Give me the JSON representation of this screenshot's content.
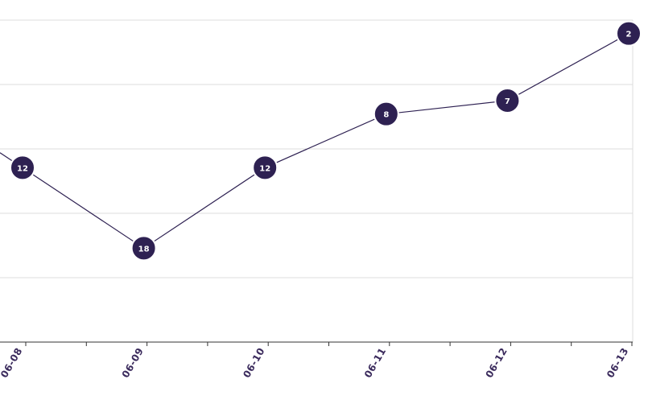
{
  "chart_data": {
    "type": "line",
    "x": [
      "06-08",
      "06-09",
      "06-10",
      "06-11",
      "06-12",
      "06-13"
    ],
    "series": [
      {
        "values": [
          12,
          18,
          12,
          8,
          7,
          2
        ],
        "color": "#2e2152"
      }
    ],
    "point_labels": [
      "12",
      "18",
      "12",
      "8",
      "7",
      "2"
    ],
    "ylim": [
      25,
      1
    ],
    "y_axis": "inverted, tick labels not shown",
    "grid": true,
    "legend": "none",
    "colors": {
      "series": "#2e2152",
      "marker_text": "#ffffff",
      "tick_label": "#3a2a5c",
      "gridline": "#dcdcdc",
      "axis": "#333333"
    }
  }
}
